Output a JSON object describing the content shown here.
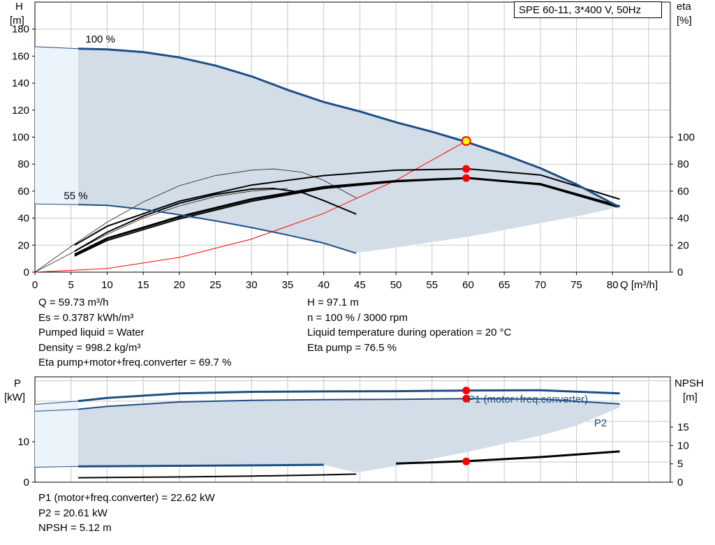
{
  "title": "SPE 60-11, 3*400 V, 50Hz",
  "colors": {
    "curve_blue": "#1c4f85",
    "fill_blue": "#d3dde7",
    "fill_light": "#ebf3fb",
    "grid": "#c7c7c7",
    "marker": "#ff0000",
    "system_curve": "#ff0000"
  },
  "chart_data": [
    {
      "type": "line",
      "name": "head-and-efficiency",
      "xlabel": "Q [m³/h]",
      "ylabel": "H\n[m]",
      "ylabel_right": "eta\n[%]",
      "xlim": [
        0,
        88
      ],
      "ylim": [
        0,
        200
      ],
      "xticks": [
        "0",
        "5",
        "10",
        "15",
        "20",
        "25",
        "30",
        "35",
        "40",
        "45",
        "50",
        "55",
        "60",
        "65",
        "70",
        "75",
        "80"
      ],
      "yticks": [
        "0",
        "20",
        "40",
        "60",
        "80",
        "100",
        "120",
        "140",
        "160",
        "180"
      ],
      "yticks_right": [
        "0",
        "20",
        "40",
        "60",
        "80",
        "100"
      ],
      "grid": true,
      "annotations": [
        "100 %",
        "55 %"
      ],
      "series": [
        {
          "label": "100 %",
          "role": "head-max",
          "x": [
            6,
            10,
            15,
            20,
            25,
            30,
            35,
            40,
            45,
            50,
            55,
            60,
            65,
            70,
            75,
            81
          ],
          "y": [
            165.5,
            165,
            163,
            159,
            153,
            145,
            135,
            126,
            119,
            111,
            104,
            96,
            87,
            77,
            65,
            48
          ]
        },
        {
          "label": "55 %",
          "role": "head-min",
          "x": [
            6,
            10,
            15,
            20,
            25,
            30,
            35,
            40,
            44.5
          ],
          "y": [
            50,
            49.5,
            46.5,
            42.5,
            38,
            33,
            27.5,
            21.5,
            14
          ]
        },
        {
          "role": "head-lower-bound",
          "x": [
            44.5,
            50,
            55,
            60,
            65,
            70,
            75,
            81
          ],
          "y": [
            14,
            18,
            22,
            26,
            31,
            36,
            41,
            48
          ]
        },
        {
          "role": "system-curve",
          "x": [
            0,
            10,
            20,
            30,
            40,
            50,
            59.73
          ],
          "y": [
            0,
            2.7,
            10.9,
            24.5,
            43.5,
            68,
            97.1
          ]
        },
        {
          "role": "eta-pump",
          "x": [
            5.5,
            10,
            20,
            30,
            40,
            50,
            60,
            70,
            81
          ],
          "y": [
            20,
            34,
            52.5,
            64.5,
            71.5,
            75.5,
            76.5,
            72,
            54
          ]
        },
        {
          "role": "eta-total",
          "x": [
            5.5,
            10,
            20,
            30,
            40,
            50,
            60,
            70,
            81
          ],
          "y": [
            13,
            25,
            41,
            54,
            63,
            67.5,
            69.7,
            65,
            48
          ]
        },
        {
          "role": "eta-total-parallel",
          "x": [
            5.5,
            10,
            20,
            30,
            40,
            50,
            60,
            70,
            81
          ],
          "y": [
            12,
            23.5,
            39.5,
            52.5,
            62,
            67,
            69.7,
            65.5,
            49
          ]
        },
        {
          "role": "eta-min-speed",
          "x": [
            5.5,
            10,
            15,
            20,
            25,
            30,
            33,
            37,
            40,
            44.5
          ],
          "y": [
            15.5,
            29.5,
            41.5,
            51,
            57.5,
            61.5,
            62,
            59,
            53,
            43
          ]
        },
        {
          "role": "eta-thin",
          "x": [
            0,
            5,
            10,
            15,
            20,
            25,
            30,
            33,
            37,
            40,
            44.5
          ],
          "y": [
            0,
            19,
            37,
            52,
            64,
            71.5,
            75.5,
            76.5,
            74,
            68,
            55
          ]
        },
        {
          "role": "eta-thin-2",
          "x": [
            0,
            5,
            10,
            15,
            20,
            25,
            30,
            35
          ],
          "y": [
            0,
            14,
            28,
            40,
            49,
            56,
            60,
            62
          ]
        }
      ],
      "operating_points": [
        {
          "x": 59.73,
          "y": 97.1,
          "kind": "duty-point"
        },
        {
          "x": 59.73,
          "y": 76.5,
          "kind": "eta-pump"
        },
        {
          "x": 59.73,
          "y": 69.7,
          "kind": "eta-total"
        }
      ]
    },
    {
      "type": "line",
      "name": "power-and-npsh",
      "xlabel": "",
      "ylabel": "P\n[kW]",
      "ylabel_right": "NPSH\n[m]",
      "xlim": [
        0,
        88
      ],
      "ylim": [
        0,
        26
      ],
      "yticks": [
        "0",
        "10"
      ],
      "yticks_right": [
        "0",
        "5",
        "10",
        "15"
      ],
      "grid": true,
      "series": [
        {
          "label": "P1 (motor+freq.converter)",
          "role": "p1",
          "x": [
            6,
            10,
            20,
            30,
            40,
            50,
            60,
            70,
            81
          ],
          "y": [
            20,
            20.8,
            21.9,
            22.3,
            22.4,
            22.45,
            22.62,
            22.7,
            21.9
          ]
        },
        {
          "label": "P2",
          "role": "p2",
          "x": [
            6,
            10,
            20,
            30,
            40,
            50,
            60,
            70,
            81
          ],
          "y": [
            18,
            18.7,
            19.8,
            20.2,
            20.35,
            20.45,
            20.61,
            20.5,
            19.3
          ]
        },
        {
          "role": "p-min",
          "x": [
            6,
            10,
            20,
            30,
            40,
            50,
            60,
            70,
            81
          ],
          "y": [
            3.9,
            3.95,
            4.05,
            4.15,
            4.3,
            4.6,
            5.2,
            6.2,
            7.6
          ]
        },
        {
          "role": "p-lower-bound",
          "x": [
            44.5,
            50,
            60,
            70,
            75,
            81
          ],
          "y": [
            2.4,
            4,
            7.5,
            11.5,
            14,
            18.5
          ]
        },
        {
          "role": "npsh",
          "x": [
            6,
            10,
            20,
            30,
            40,
            44.5
          ],
          "y": [
            1.1,
            1.15,
            1.3,
            1.5,
            1.8,
            2.0
          ]
        }
      ],
      "operating_points": [
        {
          "x": 59.73,
          "y": 22.62,
          "kind": "p1"
        },
        {
          "x": 59.73,
          "y": 20.61,
          "kind": "p2"
        },
        {
          "x": 59.73,
          "y": 5.12,
          "kind": "npsh"
        }
      ]
    }
  ],
  "results_left": [
    "Q = 59.73 m³/h",
    "Es = 0.3787 kWh/m³",
    "Pumped liquid = Water",
    "Density = 998.2 kg/m³",
    "Eta pump+motor+freq.converter = 69.7 %"
  ],
  "results_right": [
    "H = 97.1 m",
    "n = 100 % / 3000 rpm",
    "Liquid temperature during operation = 20 °C",
    "Eta pump = 76.5 %"
  ],
  "results_bottom": [
    "P1 (motor+freq.converter) = 22.62 kW",
    "P2 = 20.61 kW",
    "NPSH = 5.12 m"
  ]
}
